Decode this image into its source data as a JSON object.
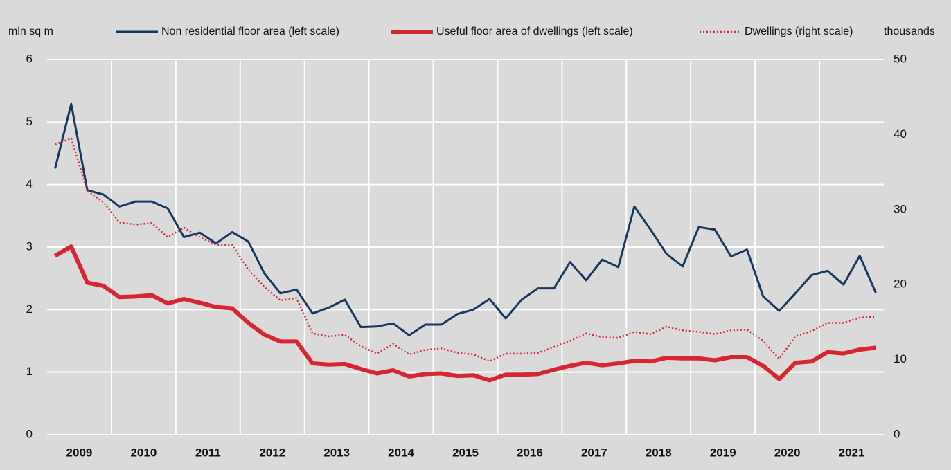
{
  "chart_data": {
    "type": "line",
    "y_axis_label": "mln sq m",
    "y2_axis_label": "thousands",
    "categories": [
      "2009",
      null,
      null,
      null,
      "2010",
      null,
      null,
      null,
      "2011",
      null,
      null,
      null,
      "2012",
      null,
      null,
      null,
      "2013",
      null,
      null,
      null,
      "2014",
      null,
      null,
      null,
      "2015",
      null,
      null,
      null,
      "2016",
      null,
      null,
      null,
      "2017",
      null,
      null,
      null,
      "2018",
      null,
      null,
      null,
      "2019",
      null,
      null,
      null,
      "2020",
      null,
      null,
      null,
      "2021",
      null,
      null,
      null
    ],
    "ylim": [
      0,
      6
    ],
    "yticks": [
      0,
      1,
      2,
      3,
      4,
      5,
      6
    ],
    "y2lim": [
      0,
      50
    ],
    "y2ticks": [
      0,
      10,
      20,
      30,
      40,
      50
    ],
    "grid": true,
    "legend": "top",
    "series": [
      {
        "name": "Non residential floor area (left scale)",
        "color": "#17375e",
        "style": "solid",
        "values": [
          4.26,
          5.29,
          3.91,
          3.84,
          3.65,
          3.73,
          3.73,
          3.62,
          3.16,
          3.23,
          3.06,
          3.24,
          3.09,
          2.58,
          2.26,
          2.32,
          1.94,
          2.03,
          2.16,
          1.72,
          1.73,
          1.78,
          1.59,
          1.76,
          1.76,
          1.93,
          2.0,
          2.17,
          1.86,
          2.16,
          2.34,
          2.34,
          2.76,
          2.47,
          2.8,
          2.68,
          3.65,
          3.28,
          2.89,
          2.69,
          3.32,
          3.28,
          2.85,
          2.96,
          2.21,
          1.98,
          2.26,
          2.55,
          2.62,
          2.4,
          2.86,
          2.27
        ]
      },
      {
        "name": "Useful floor area of dwellings (left scale)",
        "color": "#d7262f",
        "style": "thick",
        "values": [
          2.86,
          3.01,
          2.43,
          2.38,
          2.2,
          2.21,
          2.23,
          2.1,
          2.17,
          2.11,
          2.04,
          2.02,
          1.79,
          1.6,
          1.49,
          1.49,
          1.14,
          1.12,
          1.13,
          1.05,
          0.98,
          1.03,
          0.93,
          0.97,
          0.98,
          0.94,
          0.95,
          0.87,
          0.96,
          0.96,
          0.97,
          1.04,
          1.1,
          1.15,
          1.11,
          1.14,
          1.18,
          1.17,
          1.23,
          1.22,
          1.22,
          1.19,
          1.24,
          1.24,
          1.1,
          0.89,
          1.15,
          1.17,
          1.32,
          1.3,
          1.36,
          1.39
        ]
      },
      {
        "name": "Dwellings (right scale)",
        "color": "#d7262f",
        "style": "dotted",
        "axis": "y2",
        "values": [
          38.7,
          39.5,
          32.5,
          31.0,
          28.3,
          28.0,
          28.2,
          26.3,
          27.6,
          26.3,
          25.3,
          25.3,
          22.0,
          19.7,
          17.9,
          18.2,
          13.5,
          13.1,
          13.3,
          11.8,
          10.8,
          12.1,
          10.7,
          11.3,
          11.5,
          10.9,
          10.7,
          9.8,
          10.8,
          10.8,
          10.9,
          11.7,
          12.5,
          13.5,
          13.0,
          12.9,
          13.7,
          13.4,
          14.4,
          13.9,
          13.7,
          13.4,
          13.9,
          14.0,
          12.5,
          10.1,
          13.1,
          13.8,
          14.9,
          14.9,
          15.6,
          15.7
        ]
      }
    ]
  }
}
